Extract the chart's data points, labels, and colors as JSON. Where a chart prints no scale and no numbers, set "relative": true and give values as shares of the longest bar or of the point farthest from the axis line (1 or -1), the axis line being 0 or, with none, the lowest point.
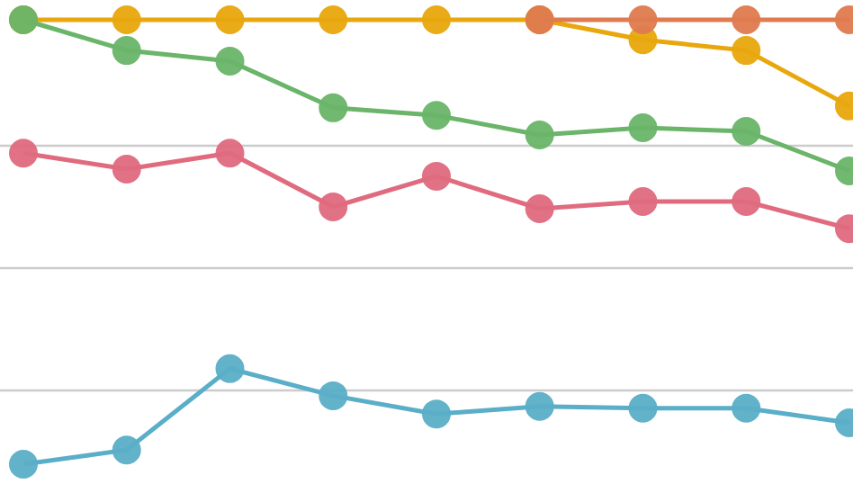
{
  "chart_data": {
    "type": "line",
    "relative": true,
    "categories": [
      null,
      null,
      null,
      null,
      null,
      null,
      null,
      null,
      null
    ],
    "series": [
      {
        "color": "#e8a70c",
        "values": [
          1,
          1,
          1,
          1,
          1,
          1,
          0.955,
          0.931,
          0.806
        ]
      },
      {
        "color": "#e07b4f",
        "values": [
          null,
          null,
          null,
          null,
          null,
          1,
          1,
          1,
          1
        ]
      },
      {
        "color": "#6ab56a",
        "values": [
          1,
          0.931,
          0.907,
          0.802,
          0.785,
          0.741,
          0.757,
          0.749,
          0.66
        ]
      },
      {
        "color": "#e06b7f",
        "values": [
          0.7,
          0.664,
          0.7,
          0.579,
          0.648,
          0.575,
          0.591,
          0.591,
          0.53
        ]
      },
      {
        "color": "#5aaec8",
        "values": [
          0,
          0.032,
          0.215,
          0.154,
          0.113,
          0.13,
          0.126,
          0.126,
          0.093
        ]
      }
    ],
    "grid": "y",
    "marker": "circle",
    "line_style": "solid"
  }
}
